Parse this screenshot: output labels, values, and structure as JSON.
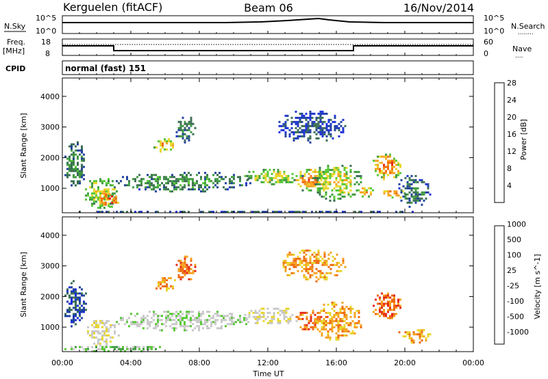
{
  "header": {
    "station": "Kerguelen (fitACF)",
    "beam": "Beam 06",
    "date": "16/Nov/2014"
  },
  "noise_panel": {
    "left_label": "N.Sky",
    "right_label": "N.Search",
    "right_label_marker": "........",
    "tick_top": "10^5",
    "tick_bottom": "10^0"
  },
  "freq_panel": {
    "left_label_1": "Freq.",
    "left_label_2": "[MHz]",
    "right_label": "Nave",
    "right_label_marker": "....",
    "left_tick_top": "18",
    "left_tick_bottom": "8",
    "right_tick_top": "60",
    "right_tick_bottom": "0"
  },
  "cpid": {
    "label": "CPID",
    "value": "normal (fast) 151"
  },
  "colors": {
    "power": [
      "#1a2fd8",
      "#1f3f9e",
      "#3a6e52",
      "#3f9b3f",
      "#55c833",
      "#e8d52a",
      "#f5a21e",
      "#ef6a10",
      "#e42a18",
      "#e80000"
    ],
    "velocity": [
      "#e80000",
      "#e42a18",
      "#ef6a10",
      "#f5a21e",
      "#e8d52a",
      "#c8c8c8",
      "#c8c8c8",
      "#55c833",
      "#3f9b3f",
      "#3a6e52",
      "#1f3f9e",
      "#1a2fd8"
    ],
    "ground_scatter": "#c8c8c8"
  },
  "chart_data": [
    {
      "type": "heatmap",
      "name": "power",
      "ylabel": "Slant Range [km]",
      "yticks": [
        "1000",
        "2000",
        "3000",
        "4000"
      ],
      "ylim": [
        200,
        4600
      ],
      "xlim": [
        0,
        24
      ],
      "colorbar_label": "Power [dB]",
      "colorbar_ticks": [
        "4",
        "8",
        "12",
        "16",
        "20",
        "24",
        "28"
      ],
      "colorbar_range": [
        0,
        32
      ],
      "regions": [
        {
          "t0": 0.0,
          "t1": 1.4,
          "r0": 1000,
          "r1": 2600,
          "level": 10
        },
        {
          "t0": 1.2,
          "t1": 3.3,
          "r0": 350,
          "r1": 1400,
          "level": 18
        },
        {
          "t0": 2.0,
          "t1": 3.3,
          "r0": 400,
          "r1": 900,
          "level": 27
        },
        {
          "t0": 3.0,
          "t1": 11.0,
          "r0": 900,
          "r1": 1600,
          "level": 11
        },
        {
          "t0": 5.2,
          "t1": 6.6,
          "r0": 2200,
          "r1": 2700,
          "level": 22
        },
        {
          "t0": 6.5,
          "t1": 7.8,
          "r0": 2500,
          "r1": 3400,
          "level": 9
        },
        {
          "t0": 10.5,
          "t1": 14.0,
          "r0": 1100,
          "r1": 1700,
          "level": 17
        },
        {
          "t0": 12.5,
          "t1": 16.5,
          "r0": 2500,
          "r1": 3600,
          "level": 5
        },
        {
          "t0": 13.5,
          "t1": 15.5,
          "r0": 900,
          "r1": 1700,
          "level": 24
        },
        {
          "t0": 14.5,
          "t1": 17.5,
          "r0": 600,
          "r1": 1900,
          "level": 18
        },
        {
          "t0": 17.0,
          "t1": 18.2,
          "r0": 700,
          "r1": 1100,
          "level": 20
        },
        {
          "t0": 18.0,
          "t1": 19.8,
          "r0": 1300,
          "r1": 2200,
          "level": 24
        },
        {
          "t0": 18.5,
          "t1": 20.0,
          "r0": 700,
          "r1": 1000,
          "level": 26
        },
        {
          "t0": 19.5,
          "t1": 21.5,
          "r0": 400,
          "r1": 1500,
          "level": 9
        },
        {
          "t0": 0.0,
          "t1": 22.0,
          "r0": 220,
          "r1": 330,
          "level": 6
        }
      ]
    },
    {
      "type": "heatmap",
      "name": "velocity",
      "ylabel": "Slant Range [km]",
      "yticks": [
        "1000",
        "2000",
        "3000",
        "4000"
      ],
      "ylim": [
        200,
        4600
      ],
      "xlim": [
        0,
        24
      ],
      "xlabel": "Time UT",
      "xticks": [
        "00:00",
        "04:00",
        "08:00",
        "12:00",
        "16:00",
        "20:00",
        "00:00"
      ],
      "colorbar_label": "Velocity [m s^-1]",
      "colorbar_ticks": [
        "-1000",
        "-500",
        "-100",
        "-25",
        "25",
        "100",
        "500",
        "1000"
      ],
      "regions": [
        {
          "t0": 0.0,
          "t1": 1.4,
          "r0": 1000,
          "r1": 2600,
          "level": 10
        },
        {
          "t0": 1.2,
          "t1": 3.3,
          "r0": 400,
          "r1": 1300,
          "level": 5
        },
        {
          "t0": 3.0,
          "t1": 11.0,
          "r0": 900,
          "r1": 1600,
          "level": 6
        },
        {
          "t0": 5.2,
          "t1": 6.6,
          "r0": 2200,
          "r1": 2700,
          "level": 3
        },
        {
          "t0": 6.5,
          "t1": 7.8,
          "r0": 2500,
          "r1": 3400,
          "level": 2
        },
        {
          "t0": 10.5,
          "t1": 14.0,
          "r0": 1100,
          "r1": 1700,
          "level": 5
        },
        {
          "t0": 12.5,
          "t1": 16.5,
          "r0": 2500,
          "r1": 3600,
          "level": 3
        },
        {
          "t0": 13.5,
          "t1": 15.5,
          "r0": 900,
          "r1": 1700,
          "level": 2
        },
        {
          "t0": 14.5,
          "t1": 17.5,
          "r0": 600,
          "r1": 1900,
          "level": 3
        },
        {
          "t0": 18.0,
          "t1": 19.8,
          "r0": 1300,
          "r1": 2200,
          "level": 2
        },
        {
          "t0": 19.5,
          "t1": 21.5,
          "r0": 500,
          "r1": 1000,
          "level": 3
        },
        {
          "t0": 0.0,
          "t1": 6.0,
          "r0": 220,
          "r1": 450,
          "level": 7
        }
      ]
    }
  ]
}
